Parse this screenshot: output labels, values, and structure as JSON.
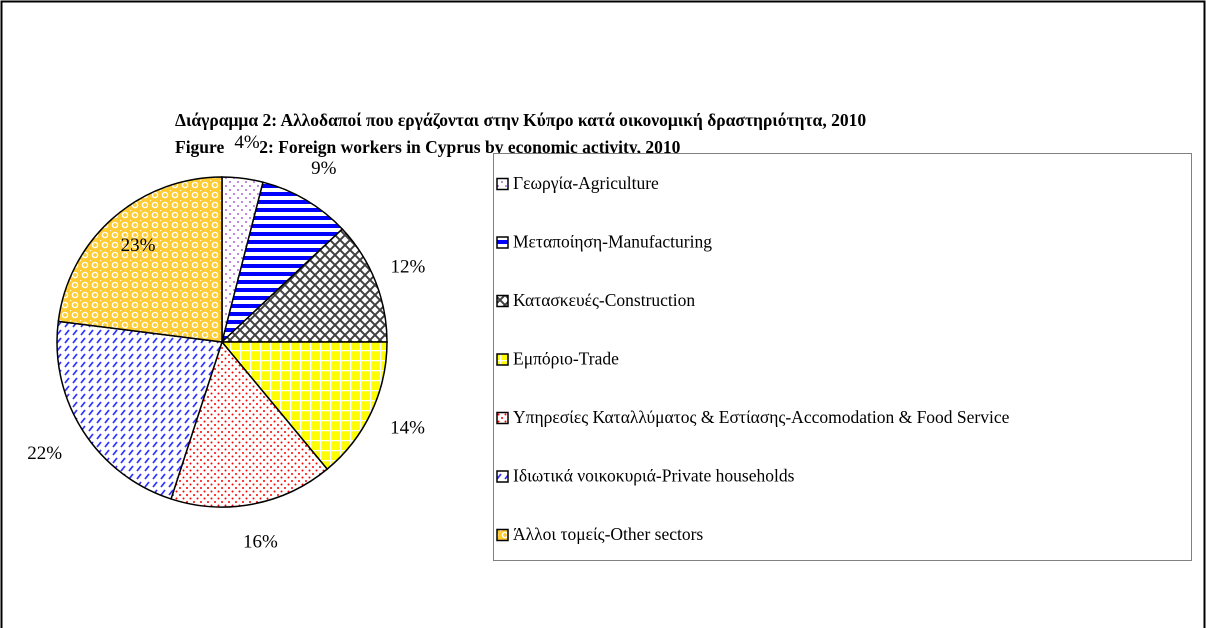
{
  "chart_data": {
    "type": "pie",
    "title": [
      "Διάγραμμα 2: Αλλοδαποί που εργάζονται στην Κύπρο κατά οικονομική δραστηριότητα, 2010",
      "Figure        2: Foreign workers in Cyprus by economic activity, 2010"
    ],
    "categories": [
      "Γεωργία-Agriculture",
      "Μεταποίηση-Manufacturing",
      "Κατασκευές-Construction",
      "Εμπόριο-Trade",
      "Υπηρεσίες Καταλλύματος & Εστίασης-Accomodation & Food Service",
      "Ιδιωτικά νοικοκυριά-Private households",
      "Άλλοι τομείς-Other sectors"
    ],
    "values": [
      4,
      9,
      12,
      14,
      16,
      22,
      23
    ],
    "value_labels": [
      "4%",
      "9%",
      "12%",
      "14%",
      "16%",
      "22%",
      "23%"
    ],
    "colors": [
      "#9933cc",
      "#0000ff",
      "#404040",
      "#ffff00",
      "#ff0000",
      "#3333ff",
      "#ffcc33"
    ],
    "legend": "right"
  }
}
